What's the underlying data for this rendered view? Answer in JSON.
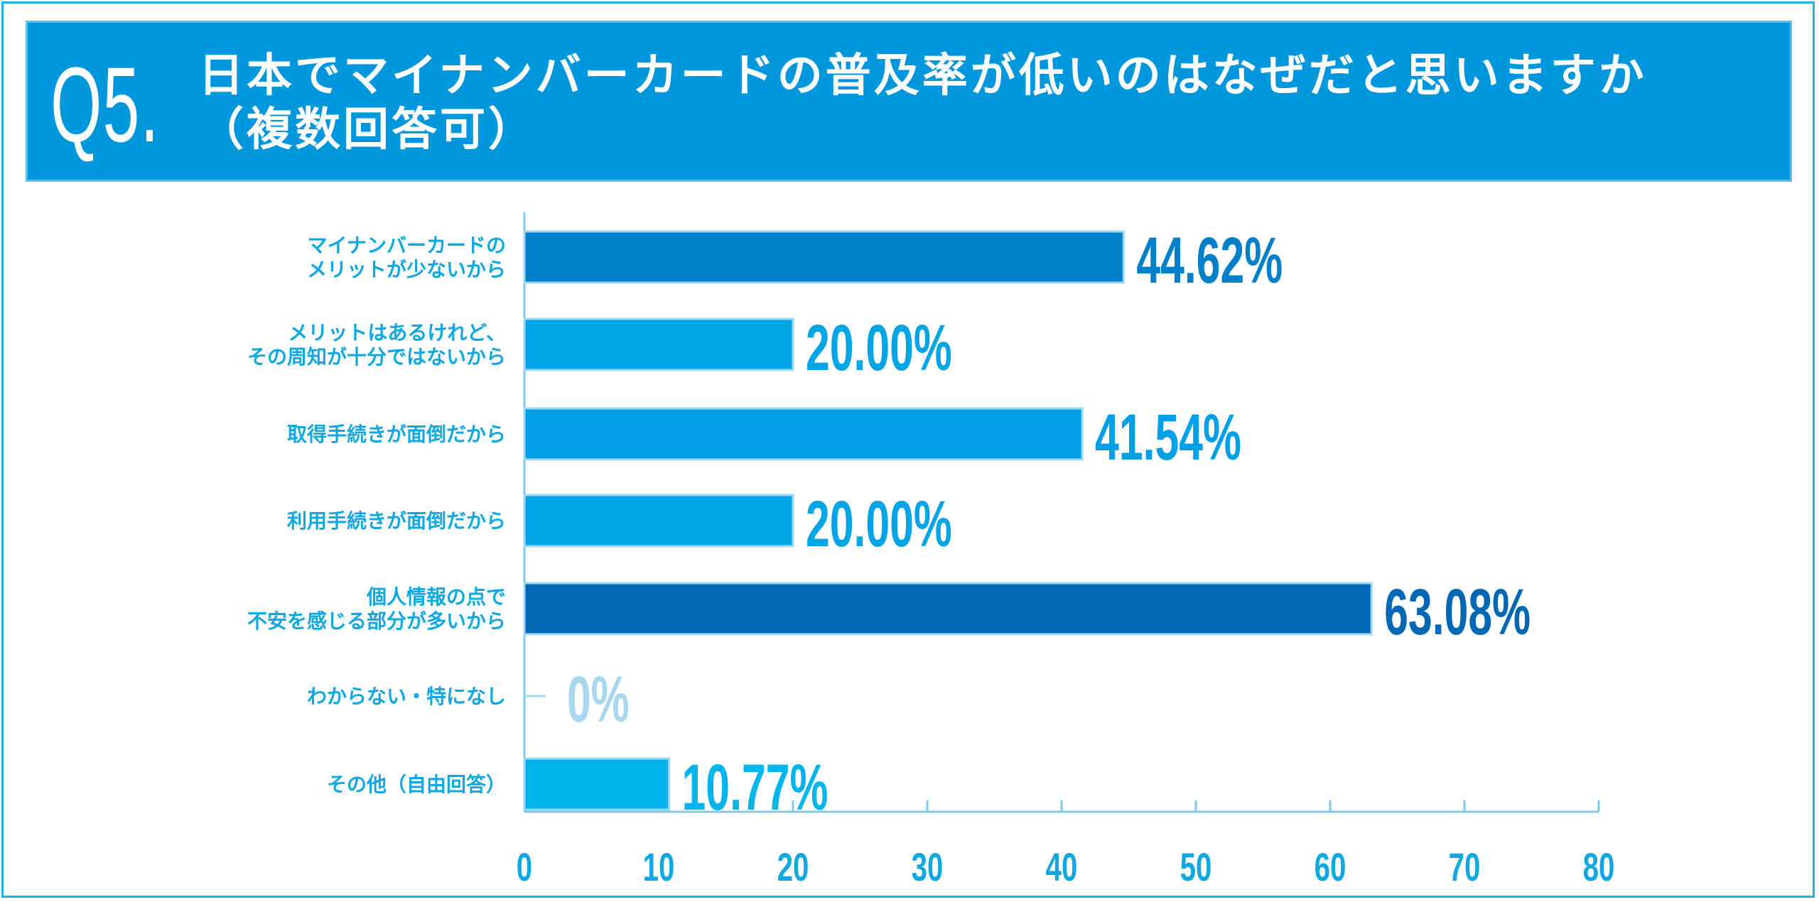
{
  "header": {
    "question_number": "Q5.",
    "title_line1": "日本でマイナンバーカードの普及率が低いのはなぜだと思いますか",
    "title_line2": "（複数回答可）"
  },
  "chart_data": {
    "type": "bar",
    "orientation": "horizontal",
    "title": "日本でマイナンバーカードの普及率が低いのはなぜだと思いますか（複数回答可）",
    "categories": [
      [
        "マイナンバーカードの",
        "メリットが少ないから"
      ],
      [
        "メリットはあるけれど、",
        "その周知が十分ではないから"
      ],
      [
        "取得手続きが面倒だから"
      ],
      [
        "利用手続きが面倒だから"
      ],
      [
        "個人情報の点で",
        "不安を感じる部分が多いから"
      ],
      [
        "わからない・特になし"
      ],
      [
        "その他（自由回答）"
      ]
    ],
    "values": [
      44.62,
      20.0,
      41.54,
      20.0,
      63.08,
      0,
      10.77
    ],
    "value_labels": [
      "44.62%",
      "20.00%",
      "41.54%",
      "20.00%",
      "63.08%",
      "0%",
      "10.77%"
    ],
    "colors": [
      "#0080c8",
      "#00a5e6",
      "#00a0e6",
      "#00a5e6",
      "#0068b4",
      "#a8d8f0",
      "#00b4ec"
    ],
    "xlim": [
      0,
      80
    ],
    "xticks": [
      0,
      10,
      20,
      30,
      40,
      50,
      60,
      70,
      80
    ],
    "grid": false,
    "legend": "none"
  }
}
